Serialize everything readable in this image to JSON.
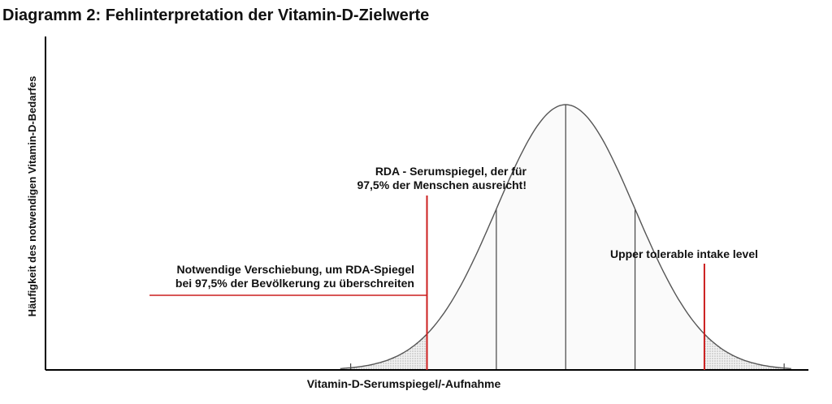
{
  "chart_data": {
    "type": "area",
    "title": "Diagramm 2: Fehlinterpretation der Vitamin-D-Zielwerte",
    "xlabel": "Vitamin-D-Serumspiegel/-Aufnahme",
    "ylabel": "Häufigkeit des notwendigen Vitamin-D-Bedarfes",
    "grid": false,
    "legend": "none",
    "distribution": {
      "shape": "normal",
      "mean": 0,
      "sd": 1,
      "xlim": [
        -7.5,
        3.5
      ],
      "plot_from": -3.25,
      "plot_to": 3.25,
      "sd_lines": [
        -2,
        -1,
        0,
        1,
        2
      ],
      "tail_hatch_beyond_sd": 2
    },
    "markers": [
      {
        "id": "rda",
        "x": -2,
        "label_lines": [
          "RDA - Serumspiegel, der für",
          "97,5% der Menschen ausreicht!"
        ]
      },
      {
        "id": "ul",
        "x": 2,
        "label_lines": [
          "Upper tolerable intake level"
        ]
      }
    ],
    "shift_arrow": {
      "from_x": -6.0,
      "to_x": -2,
      "label_lines": [
        "Notwendige Verschiebung, um RDA-Spiegel",
        "bei 97,5% der Bevölkerung zu überschreiten"
      ]
    },
    "colors": {
      "curve": "#555555",
      "marker": "#cc1f1f",
      "axis": "#000000",
      "hatch": "#b0b0b0",
      "fill": "#fafafa"
    }
  }
}
